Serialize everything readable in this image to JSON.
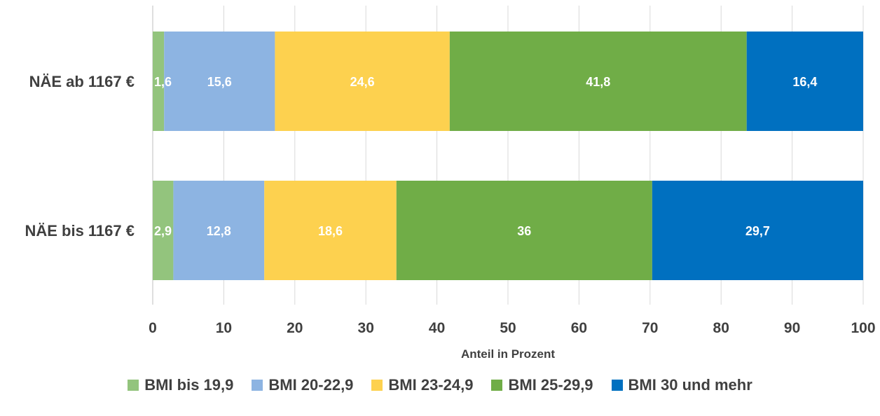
{
  "chart_data": {
    "type": "bar",
    "orientation": "horizontal",
    "stacked": true,
    "categories": [
      "NÄE ab 1167 €",
      "NÄE bis 1167 €"
    ],
    "series": [
      {
        "name": "BMI bis 19,9",
        "color": "#93c47d",
        "values": [
          1.6,
          2.9
        ],
        "labels": [
          "1,6",
          "2,9"
        ]
      },
      {
        "name": "BMI 20-22,9",
        "color": "#8db4e2",
        "values": [
          15.6,
          12.8
        ],
        "labels": [
          "15,6",
          "12,8"
        ]
      },
      {
        "name": "BMI 23-24,9",
        "color": "#fdd14f",
        "values": [
          24.6,
          18.6
        ],
        "labels": [
          "24,6",
          "18,6"
        ]
      },
      {
        "name": "BMI 25-29,9",
        "color": "#70ad47",
        "values": [
          41.8,
          36
        ],
        "labels": [
          "41,8",
          "36"
        ]
      },
      {
        "name": "BMI 30 und mehr",
        "color": "#0070c0",
        "values": [
          16.4,
          29.7
        ],
        "labels": [
          "16,4",
          "29,7"
        ]
      }
    ],
    "xlabel": "Anteil in Prozent",
    "xlim": [
      0,
      100
    ],
    "xticks": [
      "0",
      "10",
      "20",
      "30",
      "40",
      "50",
      "60",
      "70",
      "80",
      "90",
      "100"
    ],
    "grid": true,
    "legend_position": "bottom"
  }
}
